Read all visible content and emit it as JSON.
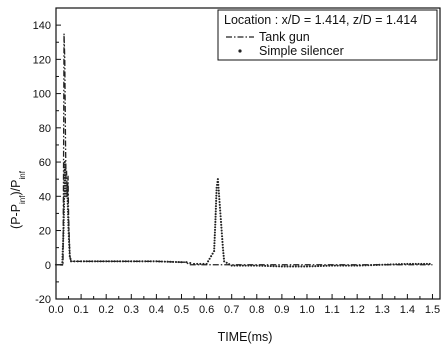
{
  "chart_data": {
    "type": "line",
    "title": "",
    "annotation": "Location : x/D = 1.414, z/D = 1.414",
    "xlabel": "TIME(ms)",
    "ylabel_parts": [
      "(P-P",
      "inf",
      ")/P",
      "inf"
    ],
    "xlim": [
      0,
      1.53
    ],
    "ylim": [
      -20,
      150
    ],
    "xticks": [
      0.0,
      0.1,
      0.2,
      0.3,
      0.4,
      0.5,
      0.6,
      0.7,
      0.8,
      0.9,
      1.0,
      1.1,
      1.2,
      1.3,
      1.4,
      1.5
    ],
    "xtick_labels": [
      "0.0",
      "0.1",
      "0.2",
      "0.3",
      "0.4",
      "0.5",
      "0.6",
      "0.7",
      "0.8",
      "0.9",
      "1.0",
      "1.1",
      "1.2",
      "1.3",
      "1.4",
      "1.5"
    ],
    "yticks": [
      -20,
      0,
      20,
      40,
      60,
      80,
      100,
      120,
      140
    ],
    "ytick_labels": [
      "-20",
      "0",
      "20",
      "40",
      "60",
      "80",
      "100",
      "120",
      "140"
    ],
    "legend_placement": "top-right",
    "grid": false,
    "series": [
      {
        "name": "Tank gun",
        "style": "dash-dot",
        "color": "#222222",
        "x": [
          0.0,
          0.02,
          0.028,
          0.03,
          0.032,
          0.035,
          0.038,
          0.04,
          0.042,
          0.045,
          0.048,
          0.05,
          0.055,
          0.06,
          0.1,
          0.2,
          0.3,
          0.4,
          0.5,
          0.52,
          0.53,
          0.55,
          0.6,
          0.65,
          0.7,
          0.8,
          0.9,
          1.0,
          1.1,
          1.2,
          1.3,
          1.4,
          1.45,
          1.5
        ],
        "y": [
          0,
          0,
          0,
          55,
          135,
          120,
          70,
          50,
          55,
          40,
          52,
          30,
          5,
          2,
          2,
          2,
          2,
          2,
          1.5,
          1.5,
          0,
          0,
          0,
          0,
          0,
          0,
          0,
          0,
          0,
          0,
          0,
          0,
          0,
          0
        ]
      },
      {
        "name": "Simple silencer",
        "style": "dots",
        "color": "#222222",
        "x": [
          0.0,
          0.02,
          0.025,
          0.03,
          0.035,
          0.04,
          0.045,
          0.05,
          0.055,
          0.06,
          0.1,
          0.2,
          0.3,
          0.4,
          0.5,
          0.52,
          0.55,
          0.6,
          0.63,
          0.635,
          0.64,
          0.645,
          0.65,
          0.655,
          0.66,
          0.665,
          0.67,
          0.7,
          0.8,
          0.9,
          1.0,
          1.1,
          1.2,
          1.3,
          1.4,
          1.5
        ],
        "y": [
          0,
          0,
          0,
          20,
          60,
          40,
          45,
          20,
          5,
          2,
          2,
          2,
          2,
          2,
          1.5,
          1.5,
          0.5,
          0.5,
          8,
          25,
          45,
          50,
          40,
          30,
          20,
          10,
          2,
          -0.5,
          -0.5,
          -1,
          -1,
          -0.5,
          -0.5,
          0,
          0.5,
          0.5
        ]
      }
    ]
  }
}
